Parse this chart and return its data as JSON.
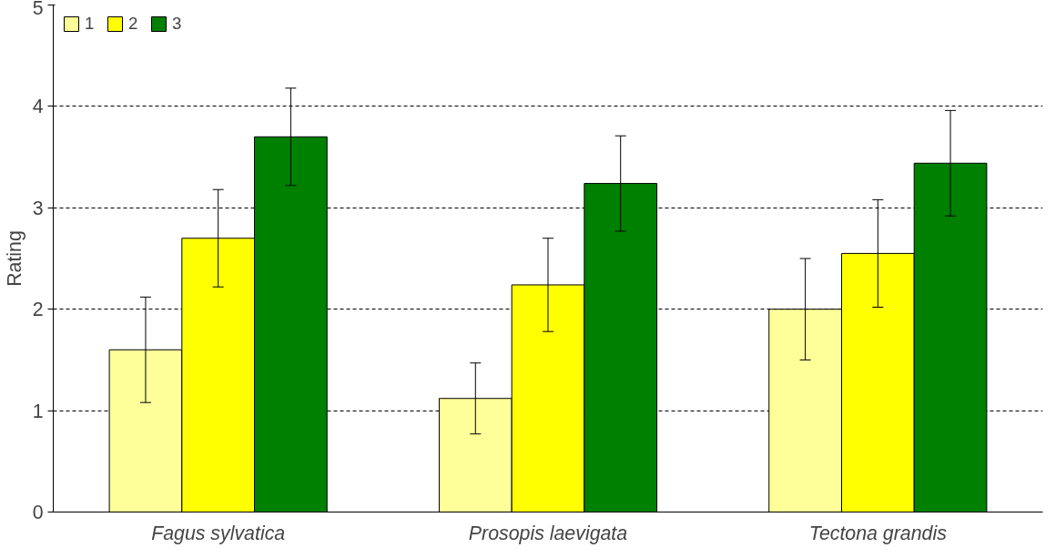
{
  "chart_data": {
    "type": "bar",
    "ylabel": "Rating",
    "categories": [
      "Fagus sylvatica",
      "Prosopis laevigata",
      "Tectona grandis"
    ],
    "series": [
      {
        "name": "1",
        "color": "#ffff99",
        "values": [
          1.6,
          1.12,
          2.0
        ],
        "errors": [
          0.52,
          0.35,
          0.5
        ]
      },
      {
        "name": "2",
        "color": "#ffff00",
        "values": [
          2.7,
          2.24,
          2.55
        ],
        "errors": [
          0.48,
          0.46,
          0.53
        ]
      },
      {
        "name": "3",
        "color": "#008000",
        "values": [
          3.7,
          3.24,
          3.44
        ],
        "errors": [
          0.48,
          0.47,
          0.52
        ]
      }
    ],
    "ylim": [
      0,
      5
    ],
    "yticks": [
      0,
      1,
      2,
      3,
      4,
      5
    ],
    "grid": "y",
    "legend": "top left"
  }
}
